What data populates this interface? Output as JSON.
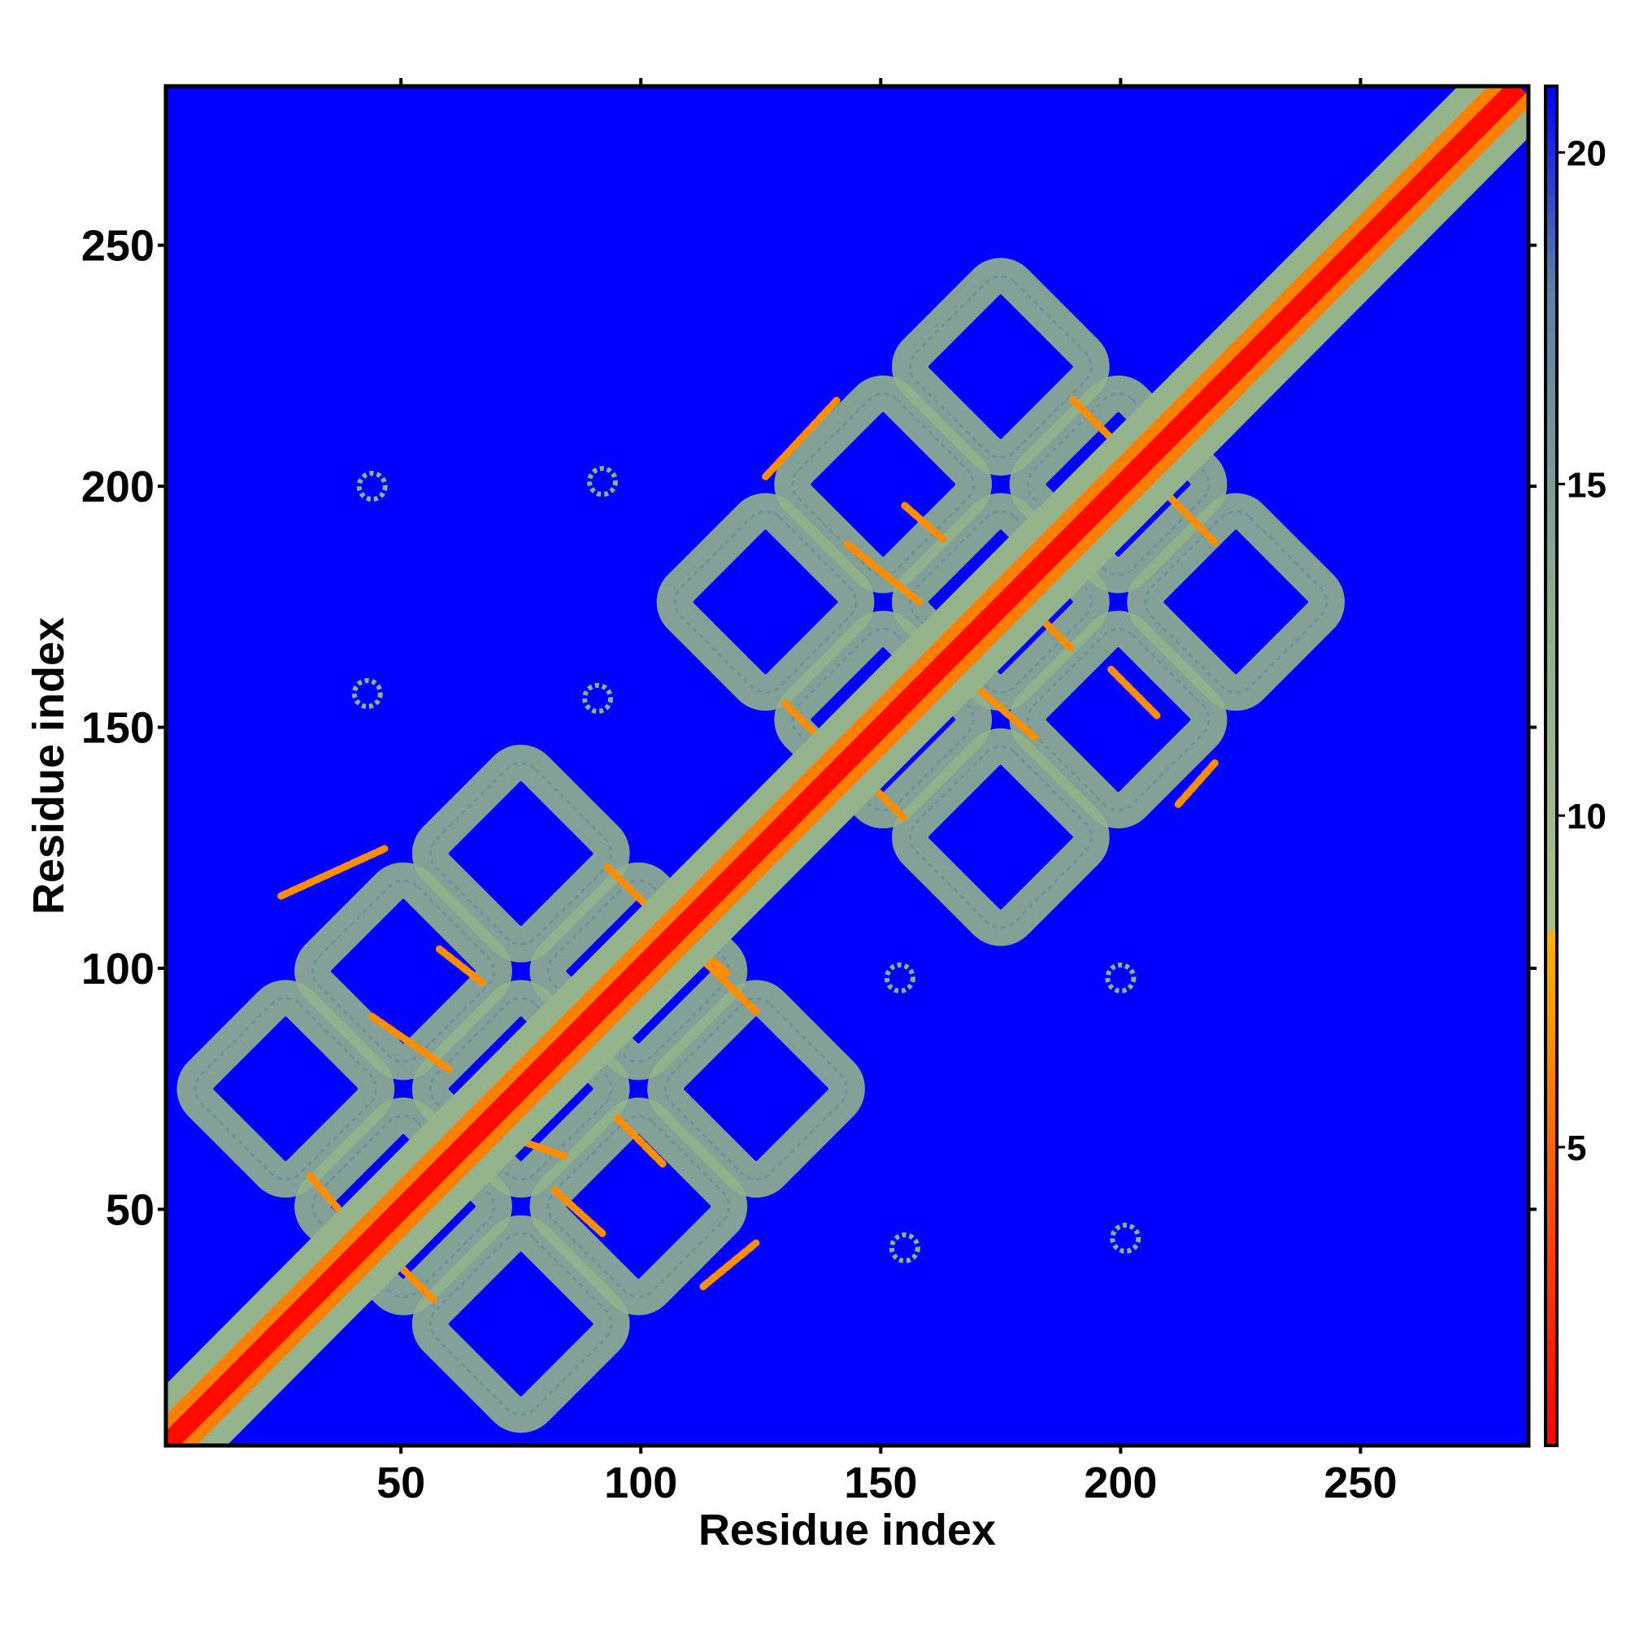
{
  "chart_data": {
    "type": "heatmap",
    "title": "",
    "xlabel": "Residue index",
    "ylabel": "Residue index",
    "xlim": [
      1,
      285
    ],
    "ylim": [
      1,
      283
    ],
    "x_ticks": [
      50,
      100,
      150,
      200,
      250
    ],
    "x_tick_labels": [
      "50",
      "100",
      "150",
      "200",
      "250"
    ],
    "y_ticks": [
      50,
      100,
      150,
      200,
      250
    ],
    "y_tick_labels": [
      "50",
      "100",
      "150",
      "200",
      "250"
    ],
    "colorbar": {
      "range": [
        0.5,
        21
      ],
      "ticks": [
        5,
        10,
        15,
        20
      ],
      "tick_labels": [
        "5",
        "10",
        "15",
        "20"
      ],
      "colors": [
        {
          "value": 0.5,
          "color": "#ff0000"
        },
        {
          "value": 4,
          "color": "#ff4a00"
        },
        {
          "value": 7,
          "color": "#ff9a00"
        },
        {
          "value": 8.2,
          "color": "#ffb000"
        },
        {
          "value": 8.3,
          "color": "#a9bf88"
        },
        {
          "value": 13,
          "color": "#8fb08c"
        },
        {
          "value": 18,
          "color": "#5a7fa8"
        },
        {
          "value": 21,
          "color": "#0000ff"
        }
      ]
    },
    "background_color": "#0000ff",
    "value_description": "pairwise residue distance map",
    "diagonal": {
      "width_residues": 3
    },
    "domains": [
      {
        "range": [
          24,
          127
        ],
        "center": [
          75,
          75
        ],
        "half_width": 52
      },
      {
        "range": [
          124,
          227
        ],
        "center": [
          175,
          176
        ],
        "half_width": 52
      }
    ],
    "contact_lines": [
      {
        "from": [
          25,
          115
        ],
        "to": [
          47,
          125
        ]
      },
      {
        "from": [
          58,
          104
        ],
        "to": [
          67,
          97
        ]
      },
      {
        "from": [
          44,
          90
        ],
        "to": [
          60,
          79
        ]
      },
      {
        "from": [
          70,
          66
        ],
        "to": [
          84,
          61
        ]
      },
      {
        "from": [
          82,
          54
        ],
        "to": [
          92,
          45
        ]
      },
      {
        "from": [
          95,
          69
        ],
        "to": [
          105,
          59
        ]
      },
      {
        "from": [
          93,
          121
        ],
        "to": [
          124,
          91
        ]
      },
      {
        "from": [
          106,
          109
        ],
        "to": [
          118,
          99
        ]
      },
      {
        "from": [
          31,
          57
        ],
        "to": [
          37,
          50
        ]
      },
      {
        "from": [
          50,
          38
        ],
        "to": [
          57,
          31
        ]
      },
      {
        "from": [
          113,
          34
        ],
        "to": [
          124,
          43
        ]
      },
      {
        "from": [
          126,
          202
        ],
        "to": [
          141,
          218
        ]
      },
      {
        "from": [
          155,
          196
        ],
        "to": [
          163,
          189
        ]
      },
      {
        "from": [
          143,
          188
        ],
        "to": [
          158,
          176
        ]
      },
      {
        "from": [
          168,
          160
        ],
        "to": [
          182,
          148
        ]
      },
      {
        "from": [
          180,
          176
        ],
        "to": [
          190,
          166
        ]
      },
      {
        "from": [
          190,
          218
        ],
        "to": [
          220,
          188
        ]
      },
      {
        "from": [
          198,
          162
        ],
        "to": [
          208,
          152
        ]
      },
      {
        "from": [
          130,
          155
        ],
        "to": [
          137,
          148
        ]
      },
      {
        "from": [
          148,
          138
        ],
        "to": [
          155,
          131
        ]
      },
      {
        "from": [
          212,
          134
        ],
        "to": [
          220,
          143
        ]
      }
    ],
    "off_domain_spots": [
      {
        "x": 44,
        "y": 200
      },
      {
        "x": 92,
        "y": 201
      },
      {
        "x": 43,
        "y": 157
      },
      {
        "x": 91,
        "y": 156
      },
      {
        "x": 154,
        "y": 98
      },
      {
        "x": 200,
        "y": 98
      },
      {
        "x": 155,
        "y": 42
      },
      {
        "x": 201,
        "y": 44
      }
    ]
  }
}
